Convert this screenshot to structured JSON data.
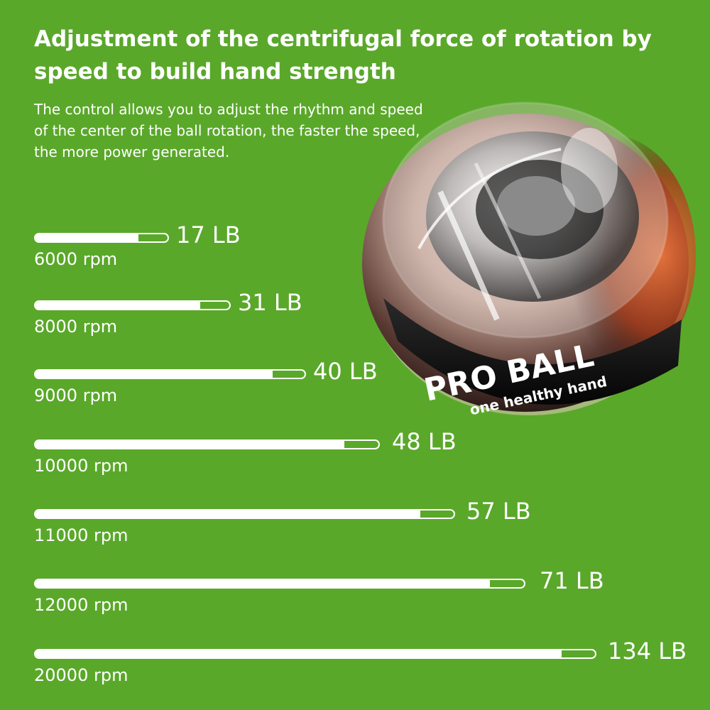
{
  "header": {
    "title": "Adjustment of the centrifugal force of rotation by speed to build hand strength",
    "description": "The control allows you to adjust the rhythm and speed of the center of the ball rotation, the faster the speed, the more power generated."
  },
  "product": {
    "band_text": "PRO BALL",
    "band_subtext": "one healthy hand"
  },
  "colors": {
    "background": "#5aa82a",
    "text": "#ffffff"
  },
  "speed_levels": [
    {
      "rpm": "6000 rpm",
      "force": "17 LB",
      "level": 0.78
    },
    {
      "rpm": "8000 rpm",
      "force": "31 LB",
      "level": 0.85
    },
    {
      "rpm": "9000 rpm",
      "force": "40 LB",
      "level": 0.88
    },
    {
      "rpm": "10000 rpm",
      "force": "48 LB",
      "level": 0.9
    },
    {
      "rpm": "11000 rpm",
      "force": "57 LB",
      "level": 0.92
    },
    {
      "rpm": "12000 rpm",
      "force": "71 LB",
      "level": 0.93
    },
    {
      "rpm": "20000 rpm",
      "force": "134 LB",
      "level": 0.94
    }
  ]
}
